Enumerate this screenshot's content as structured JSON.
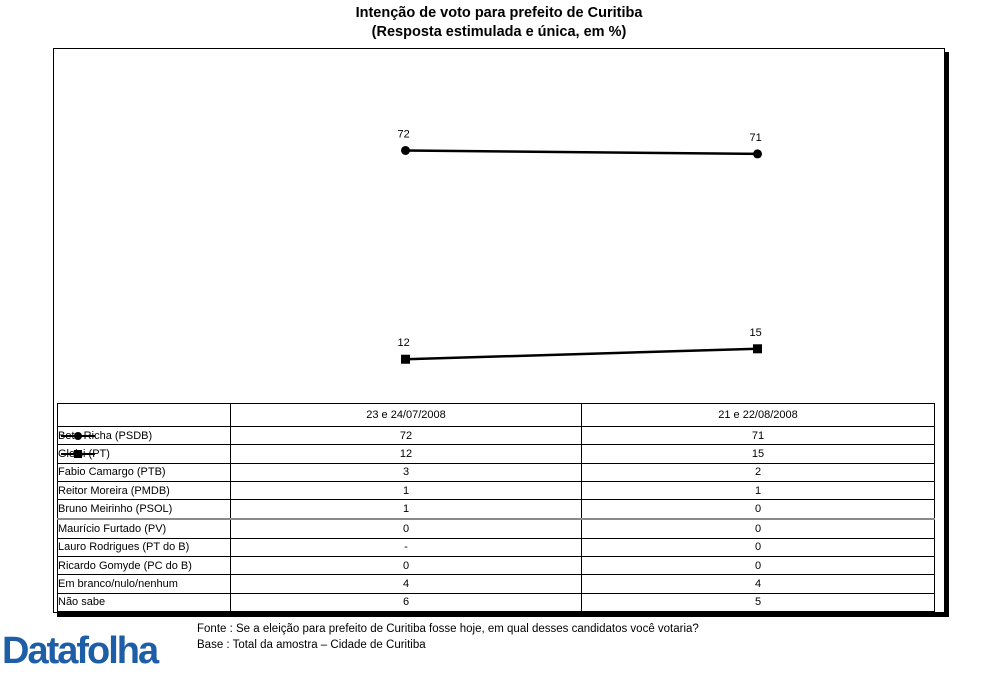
{
  "title": {
    "line1": "Intenção de voto para prefeito de Curitiba",
    "line2": "(Resposta estimulada e única, em %)"
  },
  "chart_data": {
    "type": "line",
    "title": "Intenção de voto para prefeito de Curitiba",
    "subtitle": "(Resposta estimulada e única, em %)",
    "categories": [
      "23 e 24/07/2008",
      "21 e 22/08/2008"
    ],
    "series": [
      {
        "name": "Beto Richa (PSDB)",
        "values": [
          72,
          71
        ],
        "plotted": true,
        "marker": "circle"
      },
      {
        "name": "Gleisi (PT)",
        "values": [
          12,
          15
        ],
        "plotted": true,
        "marker": "square"
      },
      {
        "name": "Fabio Camargo (PTB)",
        "values": [
          3,
          2
        ],
        "plotted": false,
        "marker": "none"
      },
      {
        "name": "Reitor Moreira (PMDB)",
        "values": [
          1,
          1
        ],
        "plotted": false,
        "marker": "none"
      },
      {
        "name": "Bruno Meirinho (PSOL)",
        "values": [
          1,
          0
        ],
        "plotted": false,
        "marker": "none"
      },
      {
        "name": "Maurício Furtado (PV)",
        "values": [
          0,
          0
        ],
        "plotted": false,
        "marker": "none"
      },
      {
        "name": "Lauro Rodrigues (PT do B)",
        "values": [
          "-",
          0
        ],
        "plotted": false,
        "marker": "none"
      },
      {
        "name": "Ricardo Gomyde (PC do B)",
        "values": [
          0,
          0
        ],
        "plotted": false,
        "marker": "none"
      },
      {
        "name": "Em branco/nulo/nenhum",
        "values": [
          4,
          4
        ],
        "plotted": false,
        "marker": "none"
      },
      {
        "name": "Não sabe",
        "values": [
          6,
          5
        ],
        "plotted": false,
        "marker": "none"
      }
    ],
    "ylim": [
      0,
      100
    ],
    "grid": false,
    "data_labels": true,
    "legend_position": "table-left",
    "gray_divider_after_row": 4,
    "line_color": "#000000"
  },
  "footer": {
    "fonte": "Fonte : Se a eleição para prefeito de Curitiba fosse hoje, em qual desses candidatos você votaria?",
    "base": "Base : Total da amostra – Cidade de Curitiba"
  },
  "logo": {
    "text": "Datafolha",
    "color": "#1e5da8"
  }
}
